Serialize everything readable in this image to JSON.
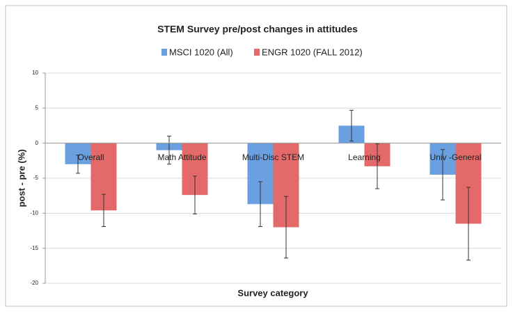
{
  "chart_data": {
    "type": "bar",
    "title": "STEM Survey pre/post changes in attitudes",
    "x_label": "Survey category",
    "y_label": "post - pre (%)",
    "categories": [
      "Overall",
      "Math Attitude",
      "Multi-Disc STEM",
      "Learning",
      "Univ -General"
    ],
    "series": [
      {
        "name": "MSCI 1020 (All)",
        "color": "#6a9fe0",
        "values": [
          -3.0,
          -1.0,
          -8.7,
          2.5,
          -4.5
        ],
        "errors": [
          1.3,
          2.0,
          3.2,
          2.2,
          3.6
        ]
      },
      {
        "name": "ENGR 1020 (FALL 2012)",
        "color": "#e46a6a",
        "values": [
          -9.6,
          -7.4,
          -12.0,
          -3.3,
          -11.5
        ],
        "errors": [
          2.3,
          2.7,
          4.4,
          3.2,
          5.2
        ]
      }
    ],
    "ylim": [
      -20,
      10
    ],
    "yticks": [
      -20,
      -15,
      -10,
      -5,
      0,
      5,
      10
    ],
    "grid": true
  }
}
